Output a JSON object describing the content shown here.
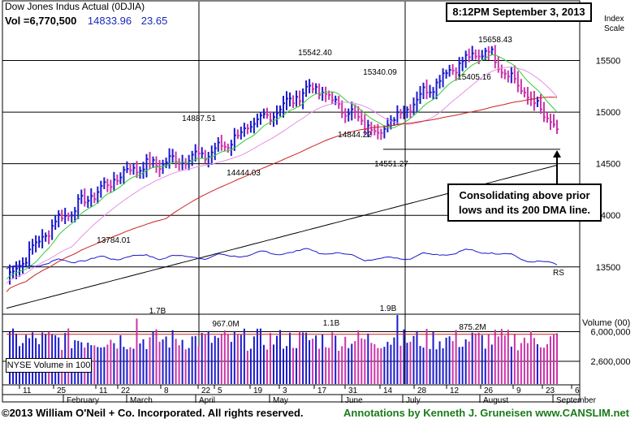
{
  "header": {
    "title": "Dow Jones Indus Actual  (0DJIA)",
    "volume_label": "Vol =6,770,500",
    "last_price": "14833.96",
    "change": "23.65",
    "timestamp": "8:12PM September 3, 2013",
    "scale_label_1": "Index",
    "scale_label_2": "Scale"
  },
  "callout": {
    "line1": "Consolidating above prior",
    "line2": "lows and its 200 DMA line."
  },
  "volume_panel": {
    "legend": "NYSE Volume in 100",
    "header": "Volume (00)",
    "ticks": [
      "6,000,000",
      "2,600,000"
    ]
  },
  "footer": {
    "copyright": "©2013 William O'Neil + Co. Incorporated. All rights reserved.",
    "annotation": "Annotations by Kenneth J. Gruneisen www.CANSLIM.net"
  },
  "colors": {
    "up_bar": "#1a1acc",
    "down_bar": "#cc33aa",
    "ma50": "#33cc33",
    "ma_pink": "#e68fe6",
    "ma200_red": "#cc2222",
    "ma200_black": "#000000",
    "rs_line": "#1a1acc",
    "annotation_green": "#1a7a1a"
  },
  "chart_data": [
    {
      "type": "candlestick",
      "title": "Dow Jones Indus Actual  (0DJIA)",
      "y_ticks": [
        13500,
        14000,
        14500,
        15000,
        15500
      ],
      "ylim": [
        13050,
        15850
      ],
      "x_tick_labels": [
        "11",
        "25",
        "11",
        "22",
        "8",
        "22",
        "5",
        "19",
        "3",
        "17",
        "31",
        "14",
        "28",
        "12",
        "26",
        "9",
        "23",
        "6"
      ],
      "month_labels": [
        "February",
        "March",
        "April",
        "May",
        "June",
        "July",
        "August",
        "September"
      ],
      "annotations": [
        {
          "label": "15658.43",
          "value": 15658.43,
          "type": "high"
        },
        {
          "label": "15542.40",
          "value": 15542.4,
          "type": "high"
        },
        {
          "label": "15340.09",
          "value": 15340.09,
          "type": "high"
        },
        {
          "label": "15405.16",
          "value": 15405.16,
          "type": "low"
        },
        {
          "label": "14887.51",
          "value": 14887.51,
          "type": "high"
        },
        {
          "label": "14844.22",
          "value": 14844.22,
          "type": "low"
        },
        {
          "label": "14444.03",
          "value": 14444.03,
          "type": "low"
        },
        {
          "label": "14551.27",
          "value": 14551.27,
          "type": "low"
        },
        {
          "label": "13784.01",
          "value": 13784.01,
          "type": "low"
        },
        {
          "label": "RS",
          "type": "line-label"
        }
      ],
      "reference_line": {
        "label": "prior lows",
        "value": 14640
      },
      "series_close_anchors": [
        {
          "month": "Jan",
          "value": 13380
        },
        {
          "month": "Feb-mid",
          "value": 13950
        },
        {
          "month": "Mar-mid",
          "value": 14450
        },
        {
          "month": "Apr-mid",
          "value": 14600
        },
        {
          "month": "May-mid",
          "value": 15250
        },
        {
          "month": "Jun-mid",
          "value": 14800
        },
        {
          "month": "Jul-mid",
          "value": 15450
        },
        {
          "month": "Aug-early",
          "value": 15600
        },
        {
          "month": "Sep-3",
          "value": 14833.96
        }
      ]
    },
    {
      "type": "bar",
      "title": "Volume (00)",
      "y_ticks": [
        "6,000,000",
        "2,600,000"
      ],
      "annotations": [
        {
          "label": "1.7B"
        },
        {
          "label": "967.0M"
        },
        {
          "label": "1.1B"
        },
        {
          "label": "1.9B"
        },
        {
          "label": "875.2M"
        }
      ]
    }
  ]
}
